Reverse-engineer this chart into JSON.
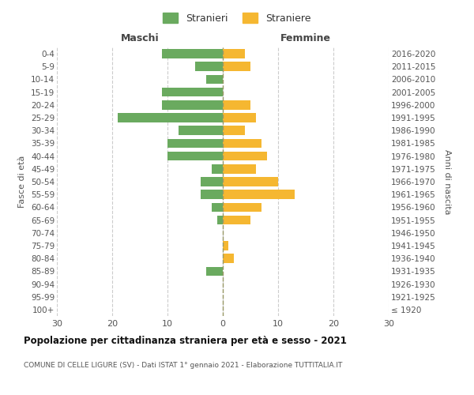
{
  "age_groups": [
    "100+",
    "95-99",
    "90-94",
    "85-89",
    "80-84",
    "75-79",
    "70-74",
    "65-69",
    "60-64",
    "55-59",
    "50-54",
    "45-49",
    "40-44",
    "35-39",
    "30-34",
    "25-29",
    "20-24",
    "15-19",
    "10-14",
    "5-9",
    "0-4"
  ],
  "birth_years": [
    "≤ 1920",
    "1921-1925",
    "1926-1930",
    "1931-1935",
    "1936-1940",
    "1941-1945",
    "1946-1950",
    "1951-1955",
    "1956-1960",
    "1961-1965",
    "1966-1970",
    "1971-1975",
    "1976-1980",
    "1981-1985",
    "1986-1990",
    "1991-1995",
    "1996-2000",
    "2001-2005",
    "2006-2010",
    "2011-2015",
    "2016-2020"
  ],
  "maschi": [
    0,
    0,
    0,
    3,
    0,
    0,
    0,
    1,
    2,
    4,
    4,
    2,
    10,
    10,
    8,
    19,
    11,
    11,
    3,
    5,
    11
  ],
  "femmine": [
    0,
    0,
    0,
    0,
    2,
    1,
    0,
    5,
    7,
    13,
    10,
    6,
    8,
    7,
    4,
    6,
    5,
    0,
    0,
    5,
    4
  ],
  "maschi_color": "#6aaa5f",
  "femmine_color": "#f5b731",
  "title": "Popolazione per cittadinanza straniera per età e sesso - 2021",
  "subtitle": "COMUNE DI CELLE LIGURE (SV) - Dati ISTAT 1° gennaio 2021 - Elaborazione TUTTITALIA.IT",
  "ylabel_left": "Fasce di età",
  "ylabel_right": "Anni di nascita",
  "xlabel_left": "Maschi",
  "xlabel_right": "Femmine",
  "legend_stranieri": "Stranieri",
  "legend_straniere": "Straniere",
  "xlim": 30,
  "background_color": "#ffffff",
  "grid_color": "#cccccc"
}
